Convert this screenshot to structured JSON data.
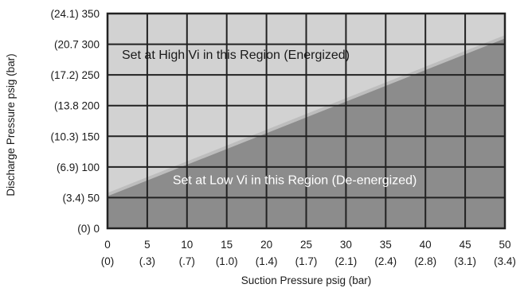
{
  "chart_data": {
    "type": "area",
    "title": "",
    "xlabel": "Suction Pressure psig (bar)",
    "ylabel": "Discharge Pressure psig (bar)",
    "xlim": [
      0,
      50
    ],
    "ylim": [
      0,
      350
    ],
    "grid": true,
    "x_ticks": [
      {
        "value": 0,
        "label": "0",
        "sub": "(0)"
      },
      {
        "value": 5,
        "label": "5",
        "sub": "(.3)"
      },
      {
        "value": 10,
        "label": "10",
        "sub": "(.7)"
      },
      {
        "value": 15,
        "label": "15",
        "sub": "(1.0)"
      },
      {
        "value": 20,
        "label": "20",
        "sub": "(1.4)"
      },
      {
        "value": 25,
        "label": "25",
        "sub": "(1.7)"
      },
      {
        "value": 30,
        "label": "30",
        "sub": "(2.1)"
      },
      {
        "value": 35,
        "label": "35",
        "sub": "(2.4)"
      },
      {
        "value": 40,
        "label": "40",
        "sub": "(2.8)"
      },
      {
        "value": 45,
        "label": "45",
        "sub": "(3.1)"
      },
      {
        "value": 50,
        "label": "50",
        "sub": "(3.4)"
      }
    ],
    "y_ticks": [
      {
        "value": 0,
        "label": "(0) 0"
      },
      {
        "value": 50,
        "label": "(3.4) 50"
      },
      {
        "value": 100,
        "label": "(6.9) 100"
      },
      {
        "value": 150,
        "label": "(10.3) 150"
      },
      {
        "value": 200,
        "label": "(13.8 200"
      },
      {
        "value": 250,
        "label": "(17.2) 250"
      },
      {
        "value": 300,
        "label": "(20.7 300"
      },
      {
        "value": 350,
        "label": "(24.1) 350"
      }
    ],
    "boundary_line": {
      "x": [
        0,
        50
      ],
      "y": [
        55,
        312
      ]
    },
    "regions": [
      {
        "label": "Set at High Vi in this Region (Energized)",
        "position": "above line",
        "color": "#d2d2d2"
      },
      {
        "label": "Set at Low Vi in this Region (De-energized)",
        "position": "below line",
        "color": "#8c8c8c"
      }
    ],
    "region_label_positions": [
      {
        "x": 1.8,
        "y": 276
      },
      {
        "x": 8.2,
        "y": 72
      }
    ],
    "boundary_color": "#bdbdbd",
    "grid_color": "#222222"
  }
}
